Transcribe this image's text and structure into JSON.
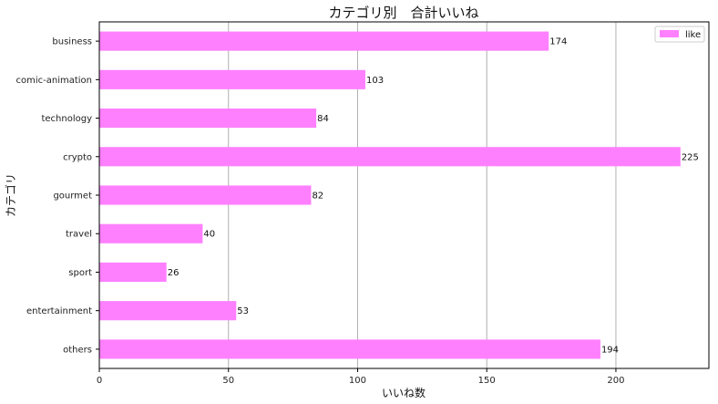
{
  "chart_data": {
    "type": "bar",
    "orientation": "horizontal",
    "title": "カテゴリ別　合計いいね",
    "xlabel": "いいね数",
    "ylabel": "カテゴリ",
    "categories": [
      "business",
      "comic-animation",
      "technology",
      "crypto",
      "gourmet",
      "travel",
      "sport",
      "entertainment",
      "others"
    ],
    "series": [
      {
        "name": "like",
        "values": [
          174,
          103,
          84,
          225,
          82,
          40,
          26,
          53,
          194
        ]
      }
    ],
    "xlim": [
      0,
      236
    ],
    "xticks": [
      0,
      50,
      100,
      150,
      200
    ],
    "grid": "x",
    "legend": "top-right",
    "bar_color": "#ff80ff"
  }
}
